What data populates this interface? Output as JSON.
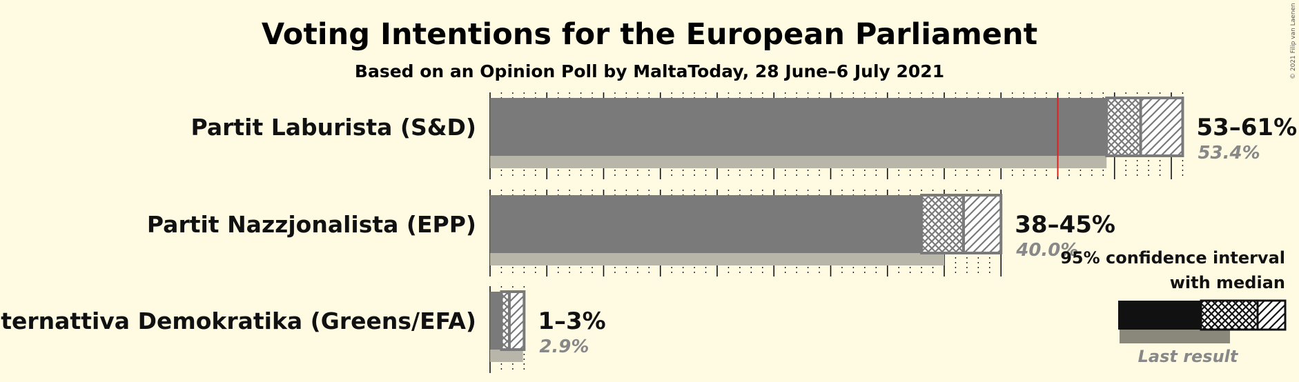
{
  "chart_data": {
    "type": "bar",
    "orientation": "horizontal",
    "title": "Voting Intentions for the European Parliament",
    "subtitle": "Based on an Opinion Poll by MaltaToday, 28 June–6 July 2021",
    "copyright": "© 2021 Filip van Laenen",
    "xlim": [
      0,
      62
    ],
    "series": [
      {
        "party": "Partit Laburista (S&D)",
        "ci_low": 53,
        "ci_high": 61,
        "ci80_low": 54.3,
        "ci80_high": 57.3,
        "median": 53.4,
        "last_result": 54.3,
        "threshold_line": 50,
        "range_label": "53–61%",
        "median_label": "53.4%"
      },
      {
        "party": "Partit Nazzjonalista (EPP)",
        "ci_low": 38,
        "ci_high": 45,
        "ci80_low": 38,
        "ci80_high": 41.7,
        "median": 40.0,
        "last_result": 40.0,
        "range_label": "38–45%",
        "median_label": "40.0%"
      },
      {
        "party": "Alternattiva Demokratika (Greens/EFA)",
        "ci_low": 1,
        "ci_high": 3,
        "ci80_low": 1,
        "ci80_high": 1.7,
        "median": 2.9,
        "last_result": 2.9,
        "range_label": "1–3%",
        "median_label": "2.9%"
      }
    ],
    "legend": {
      "line1": "95% confidence interval",
      "line2": "with median",
      "last_result": "Last result"
    },
    "colors": {
      "bar": "#7a7a7a",
      "last_result": "#b8b6a8",
      "threshold": "#e02020",
      "legend_bar": "#111111",
      "legend_last": "#8a887a",
      "background": "#fffbe3"
    }
  }
}
